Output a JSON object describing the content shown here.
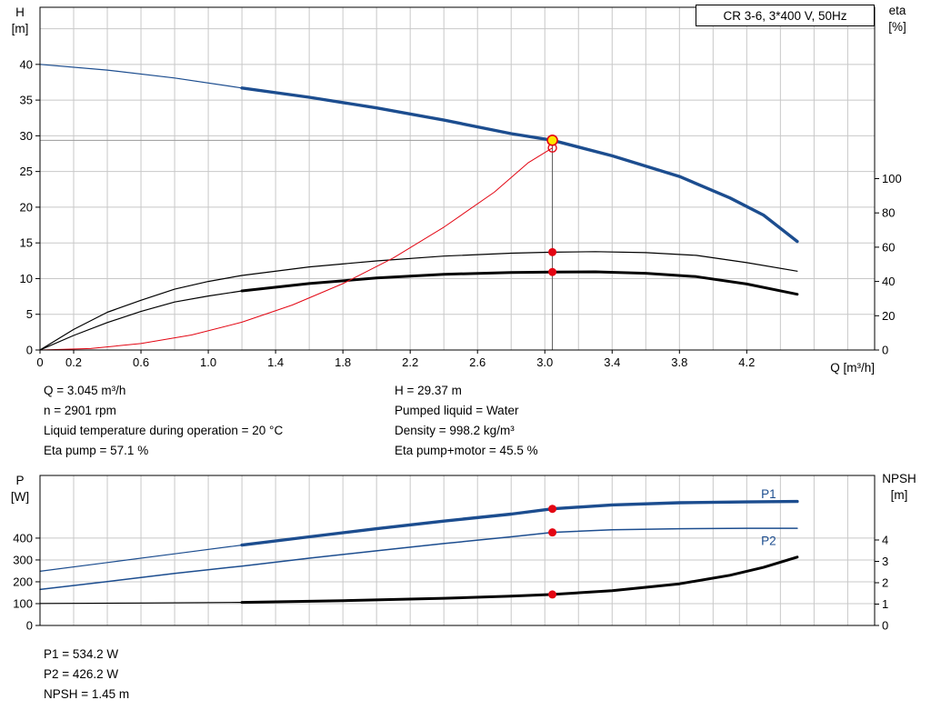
{
  "title_box": "CR 3-6, 3*400 V, 50Hz",
  "labels": {
    "top_left": "H",
    "top_left_unit": "[m]",
    "top_right": "eta",
    "top_right_unit": "[%]",
    "x_axis": "Q [m³/h]",
    "bottom_left": "P",
    "bottom_left_unit": "[W]",
    "bottom_right": "NPSH",
    "bottom_right_unit": "[m]"
  },
  "readouts_top": {
    "left": [
      "Q = 3.045 m³/h",
      "n = 2901 rpm",
      "Liquid temperature during operation = 20 °C",
      "Eta pump = 57.1 %"
    ],
    "right": [
      "H = 29.37 m",
      "Pumped liquid = Water",
      "Density = 998.2 kg/m³",
      "Eta pump+motor = 45.5 %"
    ]
  },
  "readouts_bottom": [
    "P1 = 534.2 W",
    "P2 = 426.2 W",
    "NPSH = 1.45 m"
  ],
  "colors": {
    "curve_blue": "#1c4d8f",
    "curve_black": "#000000",
    "curve_red": "#e30613",
    "dot_red": "#e30613",
    "marker_fill": "#ffe600",
    "marker_stroke": "#e30613",
    "grid": "#c8c8c8",
    "duty_line_h": "#9a9a9a",
    "duty_line_v": "#5a5a5a",
    "label_blue": "#1c4d8f"
  },
  "chart_data": [
    {
      "type": "line",
      "name": "qh-eta",
      "title": "CR 3-6, 3*400 V, 50Hz",
      "x_axis": {
        "label": "Q [m³/h]",
        "min": 0,
        "max": 4.96,
        "grid_step": 0.2,
        "ticks": [
          "0",
          "0.2",
          "0.6",
          "1.0",
          "1.4",
          "1.8",
          "2.2",
          "2.6",
          "3.0",
          "3.4",
          "3.8",
          "4.2"
        ]
      },
      "y_left": {
        "label": "H [m]",
        "min": 0,
        "max": 48,
        "grid_step": 5,
        "grid_limit": 47,
        "ticks": [
          0,
          5,
          10,
          15,
          20,
          25,
          30,
          35,
          40
        ]
      },
      "y_right": {
        "label": "eta [%]",
        "min": 0,
        "max": 200,
        "ticks": [
          0,
          20,
          40,
          60,
          80,
          100
        ]
      },
      "duty_point": {
        "q": 3.045,
        "h": 29.37
      },
      "open_circle": {
        "q": 3.045,
        "h": 28.3
      },
      "dots": [
        {
          "axis": "right",
          "q": 3.045,
          "v": 57.1
        },
        {
          "axis": "right",
          "q": 3.045,
          "v": 45.5
        }
      ],
      "series": [
        {
          "name": "head-low-flow",
          "axis": "left",
          "color": "curve_blue",
          "width": 1.2,
          "points": [
            [
              0,
              40.0
            ],
            [
              0.4,
              39.2
            ],
            [
              0.8,
              38.1
            ],
            [
              1.2,
              36.7
            ]
          ]
        },
        {
          "name": "head",
          "axis": "left",
          "color": "curve_blue",
          "width": 3.4,
          "points": [
            [
              1.2,
              36.7
            ],
            [
              1.6,
              35.4
            ],
            [
              2.0,
              33.9
            ],
            [
              2.4,
              32.2
            ],
            [
              2.8,
              30.3
            ],
            [
              3.045,
              29.37
            ],
            [
              3.4,
              27.2
            ],
            [
              3.8,
              24.3
            ],
            [
              4.1,
              21.3
            ],
            [
              4.3,
              18.9
            ],
            [
              4.5,
              15.2
            ]
          ]
        },
        {
          "name": "eta-pump",
          "axis": "right",
          "color": "curve_black",
          "width": 1.2,
          "points": [
            [
              0,
              0
            ],
            [
              0.2,
              12
            ],
            [
              0.4,
              22
            ],
            [
              0.6,
              29
            ],
            [
              0.8,
              35.5
            ],
            [
              1.0,
              40
            ],
            [
              1.2,
              43.5
            ],
            [
              1.6,
              48.5
            ],
            [
              2.0,
              52
            ],
            [
              2.4,
              54.8
            ],
            [
              2.8,
              56.5
            ],
            [
              3.045,
              57.1
            ],
            [
              3.3,
              57.4
            ],
            [
              3.6,
              56.8
            ],
            [
              3.9,
              55.2
            ],
            [
              4.2,
              51
            ],
            [
              4.5,
              46
            ]
          ]
        },
        {
          "name": "eta-pump-motor-low-flow",
          "axis": "right",
          "color": "curve_black",
          "width": 1.2,
          "points": [
            [
              0,
              0
            ],
            [
              0.2,
              8.5
            ],
            [
              0.4,
              16
            ],
            [
              0.6,
              22.5
            ],
            [
              0.8,
              28
            ],
            [
              1.0,
              31.5
            ],
            [
              1.2,
              34.5
            ]
          ]
        },
        {
          "name": "eta-pump-motor",
          "axis": "right",
          "color": "curve_black",
          "width": 3,
          "points": [
            [
              1.2,
              34.5
            ],
            [
              1.6,
              38.8
            ],
            [
              2.0,
              42
            ],
            [
              2.4,
              44.2
            ],
            [
              2.8,
              45.2
            ],
            [
              3.045,
              45.5
            ],
            [
              3.3,
              45.6
            ],
            [
              3.6,
              44.8
            ],
            [
              3.9,
              42.8
            ],
            [
              4.2,
              38.5
            ],
            [
              4.5,
              32.5
            ]
          ]
        },
        {
          "name": "duty-parabola",
          "axis": "left",
          "color": "curve_red",
          "width": 1,
          "points": [
            [
              0,
              0
            ],
            [
              0.3,
              0.2
            ],
            [
              0.6,
              0.9
            ],
            [
              0.9,
              2.1
            ],
            [
              1.2,
              3.9
            ],
            [
              1.5,
              6.3
            ],
            [
              1.8,
              9.3
            ],
            [
              2.1,
              12.9
            ],
            [
              2.4,
              17.2
            ],
            [
              2.7,
              22.1
            ],
            [
              2.9,
              26.2
            ],
            [
              3.045,
              28.3
            ]
          ]
        }
      ]
    },
    {
      "type": "line",
      "name": "power-npsh",
      "x_axis": {
        "label": "",
        "min": 0,
        "max": 4.96,
        "grid_step": 0.2,
        "ticks": []
      },
      "y_left": {
        "label": "P [W]",
        "min": 0,
        "max": 687,
        "grid_step": 100,
        "grid_limit": 400,
        "ticks": [
          0,
          100,
          200,
          300,
          400
        ]
      },
      "y_right": {
        "label": "NPSH [m]",
        "min": 0,
        "max": 7.02,
        "ticks": [
          0,
          1,
          2,
          3,
          4
        ]
      },
      "dots": [
        {
          "axis": "left",
          "q": 3.045,
          "v": 534.2
        },
        {
          "axis": "left",
          "q": 3.045,
          "v": 426.2
        },
        {
          "axis": "right",
          "q": 3.045,
          "v": 1.45
        }
      ],
      "labels": [
        {
          "text": "P1",
          "axis": "left",
          "q": 4.33,
          "v": 600
        },
        {
          "text": "P2",
          "axis": "left",
          "q": 4.33,
          "v": 385
        }
      ],
      "series": [
        {
          "name": "p1-low-flow",
          "axis": "left",
          "color": "curve_blue",
          "width": 1.2,
          "points": [
            [
              0,
              248
            ],
            [
              0.4,
              288
            ],
            [
              0.8,
              328
            ],
            [
              1.2,
              368
            ]
          ]
        },
        {
          "name": "p1",
          "axis": "left",
          "color": "curve_blue",
          "width": 3.4,
          "points": [
            [
              1.2,
              368
            ],
            [
              1.6,
              406
            ],
            [
              2.0,
              443
            ],
            [
              2.4,
              478
            ],
            [
              2.8,
              510
            ],
            [
              3.045,
              534.2
            ],
            [
              3.4,
              552
            ],
            [
              3.8,
              562
            ],
            [
              4.2,
              566
            ],
            [
              4.5,
              568
            ]
          ]
        },
        {
          "name": "p2",
          "axis": "left",
          "color": "curve_blue",
          "width": 1.5,
          "points": [
            [
              0,
              165
            ],
            [
              0.4,
              201
            ],
            [
              0.8,
              238
            ],
            [
              1.2,
              272
            ],
            [
              1.6,
              308
            ],
            [
              2.0,
              342
            ],
            [
              2.4,
              375
            ],
            [
              2.8,
              406
            ],
            [
              3.045,
              426.2
            ],
            [
              3.4,
              438
            ],
            [
              3.8,
              443
            ],
            [
              4.2,
              445
            ],
            [
              4.5,
              445
            ]
          ]
        },
        {
          "name": "npsh-low-flow",
          "axis": "right",
          "color": "curve_black",
          "width": 1.2,
          "points": [
            [
              0,
              1.03
            ],
            [
              0.6,
              1.05
            ],
            [
              1.2,
              1.08
            ]
          ]
        },
        {
          "name": "npsh",
          "axis": "right",
          "color": "curve_black",
          "width": 3,
          "points": [
            [
              1.2,
              1.08
            ],
            [
              1.8,
              1.16
            ],
            [
              2.4,
              1.27
            ],
            [
              2.8,
              1.37
            ],
            [
              3.045,
              1.45
            ],
            [
              3.4,
              1.63
            ],
            [
              3.8,
              1.95
            ],
            [
              4.1,
              2.35
            ],
            [
              4.3,
              2.72
            ],
            [
              4.5,
              3.2
            ]
          ]
        }
      ]
    }
  ]
}
